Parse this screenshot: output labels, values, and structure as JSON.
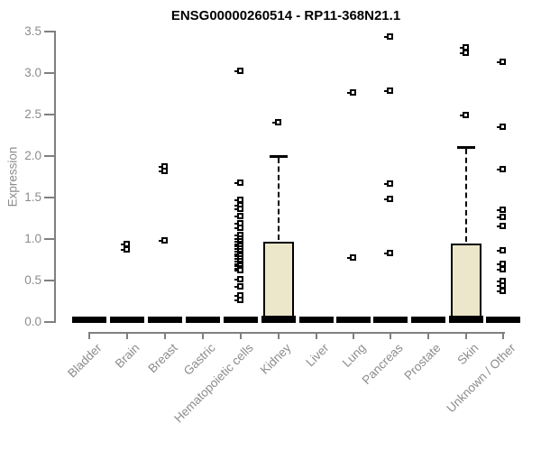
{
  "chart_data": {
    "type": "boxplot",
    "title": "ENSG00000260514 - RP11-368N21.1",
    "ylabel": "Expression",
    "xlabel": "",
    "ylim": [
      0.0,
      3.5
    ],
    "ytick_step": 0.5,
    "grid": false,
    "legend": "none",
    "categories": [
      "Bladder",
      "Brain",
      "Breast",
      "Gastric",
      "Hematopoietic cells",
      "Kidney",
      "Liver",
      "Lung",
      "Pancreas",
      "Prostate",
      "Skin",
      "Unknown / Other"
    ],
    "series": [
      {
        "category": "Bladder",
        "q1": 0,
        "median": 0,
        "q3": 0,
        "whisker_low": 0,
        "whisker_high": 0,
        "points": []
      },
      {
        "category": "Brain",
        "q1": 0,
        "median": 0,
        "q3": 0,
        "whisker_low": 0,
        "whisker_high": 0,
        "points": [
          0.93,
          0.87
        ]
      },
      {
        "category": "Breast",
        "q1": 0,
        "median": 0,
        "q3": 0,
        "whisker_low": 0,
        "whisker_high": 0,
        "points": [
          1.87,
          1.82,
          0.98
        ]
      },
      {
        "category": "Gastric",
        "q1": 0,
        "median": 0,
        "q3": 0,
        "whisker_low": 0,
        "whisker_high": 0,
        "points": []
      },
      {
        "category": "Hematopoietic cells",
        "q1": 0,
        "median": 0,
        "q3": 0,
        "whisker_low": 0,
        "whisker_high": 0,
        "points": [
          3.02,
          1.67,
          1.47,
          1.4,
          1.36,
          1.27,
          1.18,
          1.13,
          1.04,
          1.0,
          0.97,
          0.94,
          0.91,
          0.88,
          0.85,
          0.82,
          0.79,
          0.76,
          0.73,
          0.7,
          0.67,
          0.64,
          0.62,
          0.51,
          0.42,
          0.32,
          0.26
        ]
      },
      {
        "category": "Kidney",
        "q1": 0,
        "median": 0,
        "q3": 0.97,
        "whisker_low": 0,
        "whisker_high": 2.0,
        "points": [
          2.4
        ]
      },
      {
        "category": "Liver",
        "q1": 0,
        "median": 0,
        "q3": 0,
        "whisker_low": 0,
        "whisker_high": 0,
        "points": []
      },
      {
        "category": "Lung",
        "q1": 0,
        "median": 0,
        "q3": 0,
        "whisker_low": 0,
        "whisker_high": 0,
        "points": [
          2.76,
          0.77
        ]
      },
      {
        "category": "Pancreas",
        "q1": 0,
        "median": 0,
        "q3": 0,
        "whisker_low": 0,
        "whisker_high": 0,
        "points": [
          3.43,
          2.78,
          1.66,
          1.48,
          0.83
        ]
      },
      {
        "category": "Prostate",
        "q1": 0,
        "median": 0,
        "q3": 0,
        "whisker_low": 0,
        "whisker_high": 0,
        "points": []
      },
      {
        "category": "Skin",
        "q1": 0,
        "median": 0,
        "q3": 0.95,
        "whisker_low": 0,
        "whisker_high": 2.11,
        "points": [
          3.3,
          3.24,
          2.49
        ]
      },
      {
        "category": "Unknown / Other",
        "q1": 0,
        "median": 0,
        "q3": 0,
        "whisker_low": 0,
        "whisker_high": 0,
        "points": [
          3.13,
          2.35,
          1.84,
          1.35,
          1.26,
          1.15,
          0.86,
          0.7,
          0.63,
          0.49,
          0.43,
          0.37
        ]
      }
    ],
    "colors": {
      "box_fill": "#ECE7CB",
      "box_border": "#000000",
      "marker": "#000000",
      "axis": "#808080",
      "tick_labels": "#8C8C8C",
      "title": "#000000",
      "background": "#FFFFFF"
    }
  }
}
